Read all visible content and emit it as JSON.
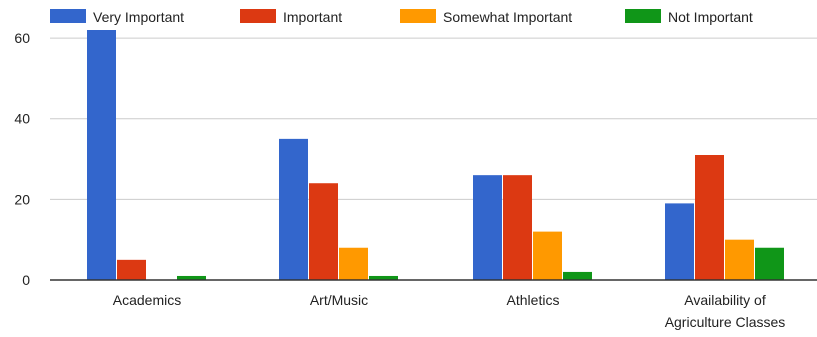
{
  "chart_data": {
    "type": "bar",
    "categories": [
      "Academics",
      "Art/Music",
      "Athletics",
      "Availability of Agriculture Classes"
    ],
    "category_lines": [
      [
        "Academics"
      ],
      [
        "Art/Music"
      ],
      [
        "Athletics"
      ],
      [
        "Availability of",
        "Agriculture Classes"
      ]
    ],
    "series": [
      {
        "name": "Very Important",
        "color": "#3366cc",
        "values": [
          62,
          35,
          26,
          19
        ]
      },
      {
        "name": "Important",
        "color": "#dc3912",
        "values": [
          5,
          24,
          26,
          31
        ]
      },
      {
        "name": "Somewhat Important",
        "color": "#ff9900",
        "values": [
          0,
          8,
          12,
          10
        ]
      },
      {
        "name": "Not Important",
        "color": "#109618",
        "values": [
          1,
          1,
          2,
          8
        ]
      }
    ],
    "title": "",
    "xlabel": "",
    "ylabel": "",
    "ylim": [
      0,
      62
    ],
    "yticks": [
      0,
      20,
      40,
      60
    ],
    "grid": true,
    "legend_position": "top"
  }
}
